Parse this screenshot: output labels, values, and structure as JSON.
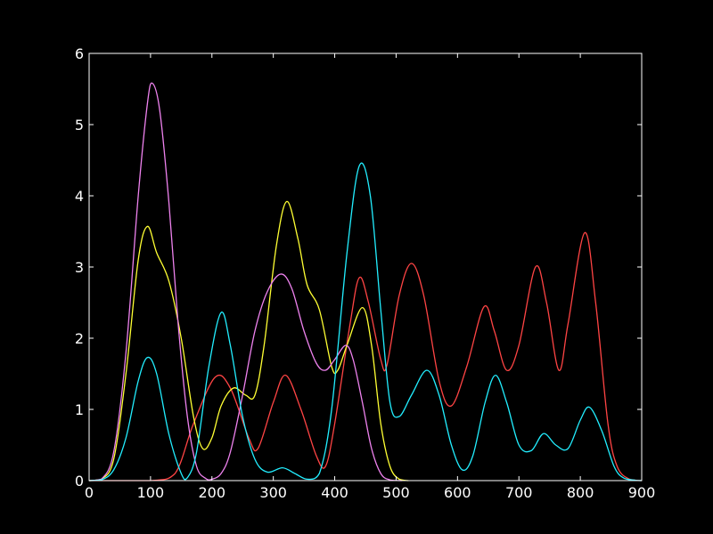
{
  "chart_data": {
    "type": "line",
    "title": "",
    "xlabel": "",
    "ylabel": "",
    "xlim": [
      0,
      900
    ],
    "ylim": [
      0,
      6
    ],
    "grid": false,
    "background": "#000000",
    "foreground": "#ffffff",
    "x_ticks": [
      {
        "label": "0",
        "value": 0
      },
      {
        "label": "100",
        "value": 100
      },
      {
        "label": "200",
        "value": 200
      },
      {
        "label": "300",
        "value": 300
      },
      {
        "label": "400",
        "value": 400
      },
      {
        "label": "500",
        "value": 500
      },
      {
        "label": "600",
        "value": 600
      },
      {
        "label": "700",
        "value": 700
      },
      {
        "label": "800",
        "value": 800
      },
      {
        "label": "900",
        "value": 900
      }
    ],
    "y_ticks": [
      {
        "label": "0",
        "value": 0
      },
      {
        "label": "1",
        "value": 1
      },
      {
        "label": "2",
        "value": 2
      },
      {
        "label": "3",
        "value": 3
      },
      {
        "label": "4",
        "value": 4
      },
      {
        "label": "5",
        "value": 5
      },
      {
        "label": "6",
        "value": 6
      }
    ],
    "series": [
      {
        "color": "#ff4444",
        "points": [
          [
            0,
            0
          ],
          [
            100,
            0
          ],
          [
            140,
            0.1
          ],
          [
            170,
            0.8
          ],
          [
            205,
            1.45
          ],
          [
            230,
            1.3
          ],
          [
            260,
            0.6
          ],
          [
            275,
            0.45
          ],
          [
            300,
            1.1
          ],
          [
            320,
            1.48
          ],
          [
            345,
            1.0
          ],
          [
            370,
            0.35
          ],
          [
            385,
            0.2
          ],
          [
            400,
            0.8
          ],
          [
            425,
            2.2
          ],
          [
            440,
            2.85
          ],
          [
            455,
            2.5
          ],
          [
            475,
            1.7
          ],
          [
            485,
            1.62
          ],
          [
            505,
            2.6
          ],
          [
            525,
            3.05
          ],
          [
            545,
            2.6
          ],
          [
            570,
            1.4
          ],
          [
            590,
            1.05
          ],
          [
            615,
            1.6
          ],
          [
            643,
            2.44
          ],
          [
            660,
            2.1
          ],
          [
            680,
            1.55
          ],
          [
            700,
            1.9
          ],
          [
            727,
            3.0
          ],
          [
            745,
            2.5
          ],
          [
            765,
            1.55
          ],
          [
            780,
            2.2
          ],
          [
            807,
            3.48
          ],
          [
            825,
            2.5
          ],
          [
            845,
            0.8
          ],
          [
            860,
            0.2
          ],
          [
            880,
            0.02
          ],
          [
            900,
            0
          ]
        ]
      },
      {
        "color": "#ffff33",
        "points": [
          [
            0,
            0
          ],
          [
            20,
            0.02
          ],
          [
            40,
            0.3
          ],
          [
            60,
            1.5
          ],
          [
            80,
            3.1
          ],
          [
            95,
            3.57
          ],
          [
            110,
            3.2
          ],
          [
            130,
            2.8
          ],
          [
            150,
            2.0
          ],
          [
            170,
            0.9
          ],
          [
            185,
            0.45
          ],
          [
            200,
            0.6
          ],
          [
            215,
            1.05
          ],
          [
            235,
            1.3
          ],
          [
            255,
            1.2
          ],
          [
            270,
            1.2
          ],
          [
            285,
            1.9
          ],
          [
            305,
            3.3
          ],
          [
            322,
            3.92
          ],
          [
            340,
            3.4
          ],
          [
            355,
            2.75
          ],
          [
            375,
            2.4
          ],
          [
            395,
            1.6
          ],
          [
            405,
            1.55
          ],
          [
            420,
            1.9
          ],
          [
            445,
            2.43
          ],
          [
            460,
            1.9
          ],
          [
            475,
            0.8
          ],
          [
            490,
            0.2
          ],
          [
            505,
            0.02
          ],
          [
            520,
            0
          ]
        ]
      },
      {
        "color": "#ee82ee",
        "points": [
          [
            0,
            0
          ],
          [
            20,
            0.02
          ],
          [
            40,
            0.4
          ],
          [
            60,
            1.8
          ],
          [
            80,
            4.0
          ],
          [
            95,
            5.3
          ],
          [
            103,
            5.58
          ],
          [
            115,
            5.2
          ],
          [
            130,
            3.9
          ],
          [
            145,
            2.2
          ],
          [
            160,
            0.9
          ],
          [
            175,
            0.2
          ],
          [
            190,
            0.03
          ],
          [
            200,
            0.02
          ],
          [
            215,
            0.1
          ],
          [
            230,
            0.4
          ],
          [
            250,
            1.2
          ],
          [
            270,
            2.1
          ],
          [
            290,
            2.65
          ],
          [
            312,
            2.9
          ],
          [
            330,
            2.7
          ],
          [
            350,
            2.1
          ],
          [
            370,
            1.65
          ],
          [
            385,
            1.55
          ],
          [
            400,
            1.7
          ],
          [
            418,
            1.9
          ],
          [
            430,
            1.7
          ],
          [
            445,
            1.1
          ],
          [
            460,
            0.45
          ],
          [
            475,
            0.1
          ],
          [
            490,
            0.01
          ],
          [
            510,
            0
          ]
        ]
      },
      {
        "color": "#22eeff",
        "points": [
          [
            0,
            0
          ],
          [
            20,
            0.01
          ],
          [
            40,
            0.15
          ],
          [
            60,
            0.6
          ],
          [
            80,
            1.4
          ],
          [
            95,
            1.73
          ],
          [
            110,
            1.5
          ],
          [
            130,
            0.65
          ],
          [
            150,
            0.1
          ],
          [
            160,
            0.04
          ],
          [
            175,
            0.4
          ],
          [
            195,
            1.6
          ],
          [
            215,
            2.36
          ],
          [
            230,
            1.9
          ],
          [
            250,
            0.9
          ],
          [
            270,
            0.3
          ],
          [
            290,
            0.12
          ],
          [
            315,
            0.18
          ],
          [
            335,
            0.1
          ],
          [
            355,
            0.02
          ],
          [
            375,
            0.1
          ],
          [
            395,
            1.0
          ],
          [
            420,
            3.2
          ],
          [
            440,
            4.42
          ],
          [
            458,
            4.0
          ],
          [
            475,
            2.4
          ],
          [
            490,
            1.1
          ],
          [
            505,
            0.9
          ],
          [
            525,
            1.2
          ],
          [
            550,
            1.55
          ],
          [
            570,
            1.2
          ],
          [
            590,
            0.5
          ],
          [
            608,
            0.15
          ],
          [
            625,
            0.35
          ],
          [
            645,
            1.1
          ],
          [
            662,
            1.48
          ],
          [
            680,
            1.1
          ],
          [
            700,
            0.5
          ],
          [
            720,
            0.42
          ],
          [
            740,
            0.66
          ],
          [
            760,
            0.5
          ],
          [
            780,
            0.45
          ],
          [
            800,
            0.85
          ],
          [
            815,
            1.03
          ],
          [
            835,
            0.7
          ],
          [
            855,
            0.2
          ],
          [
            870,
            0.04
          ],
          [
            890,
            0.005
          ],
          [
            900,
            0
          ]
        ]
      }
    ]
  }
}
